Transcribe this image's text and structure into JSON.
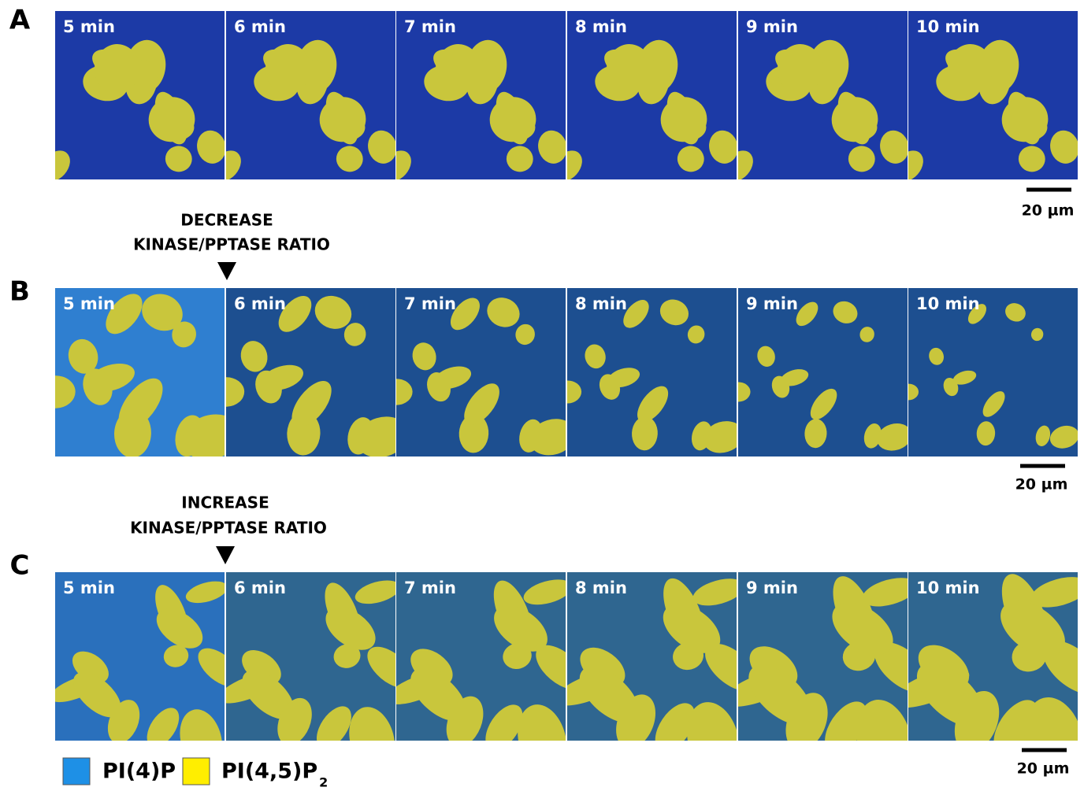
{
  "panels": [
    {
      "label": "A",
      "frames": [
        "5 min",
        "6 min",
        "7 min",
        "8 min",
        "9 min",
        "10 min"
      ],
      "scale_bar": "20 µm"
    },
    {
      "label": "B",
      "annotation": [
        "DECREASE",
        "KINASE/PPTASE RATIO"
      ],
      "frames": [
        "5 min",
        "6 min",
        "7 min",
        "8 min",
        "9 min",
        "10 min"
      ],
      "scale_bar": "20 µm"
    },
    {
      "label": "C",
      "annotation": [
        "INCREASE",
        "KINASE/PPTASE RATIO"
      ],
      "frames": [
        "5 min",
        "6 min",
        "7 min",
        "8 min",
        "9 min",
        "10 min"
      ],
      "scale_bar": "20 µm"
    }
  ],
  "legend": [
    {
      "label": "PI(4)P",
      "color": "#1e90e6"
    },
    {
      "label": "PI(4,5)P",
      "subscript": "2",
      "color": "#ffee00"
    }
  ]
}
